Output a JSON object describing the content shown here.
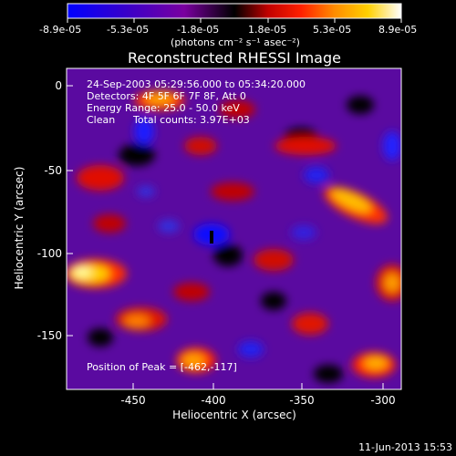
{
  "colorbar": {
    "tick_labels": [
      "-8.9e-05",
      "-5.3e-05",
      "-1.8e-05",
      "1.8e-05",
      "5.3e-05",
      "8.9e-05"
    ],
    "units_label": "(photons cm⁻² s⁻¹ asec⁻²)",
    "colors": [
      "#0000ff",
      "#3a00c8",
      "#7a00a0",
      "#000000",
      "#c00000",
      "#ff2000",
      "#ff8c00",
      "#ffd000",
      "#ffffff"
    ]
  },
  "image": {
    "title": "Reconstructed RHESSI Image",
    "info_lines": [
      "24-Sep-2003 05:29:56.000 to 05:34:20.000",
      "Detectors: 4F 5F 6F 7F 8F, Att 0",
      "Energy Range: 25.0 - 50.0 keV"
    ],
    "clean_label": "Clean",
    "total_counts": "Total counts: 3.97E+03",
    "peak_text": "Position of Peak = [-462,-117]",
    "xlabel": "Heliocentric X (arcsec)",
    "ylabel": "Heliocentric Y (arcsec)",
    "x_ticks": [
      "-450",
      "-400",
      "-350",
      "-300"
    ],
    "y_ticks": [
      "0",
      "-50",
      "-100",
      "-150"
    ],
    "x_range": [
      -490,
      -292
    ],
    "y_range": [
      -182,
      10
    ]
  },
  "timestamp": "11-Jun-2013 15:53"
}
